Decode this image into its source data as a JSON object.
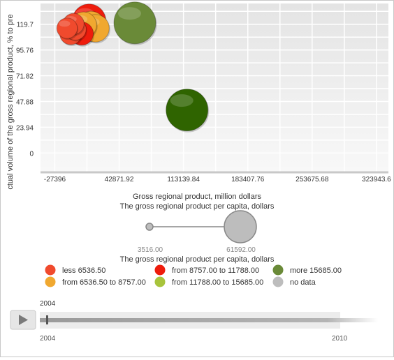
{
  "chart_data": {
    "type": "scatter",
    "subtype": "bubble",
    "ylabel": "Actual volume of the gross regional product, % to previous year",
    "ylabel_visible": "ctual volume of the gross regional product, % to pre",
    "xlabel": "Gross regional product, million dollars",
    "x_ticks": [
      "-27396",
      "42871.92",
      "113139.84",
      "183407.76",
      "253675.68",
      "323943.6"
    ],
    "x_tick_values": [
      -27396,
      42871.92,
      113139.84,
      183407.76,
      253675.68,
      323943.6
    ],
    "y_ticks": [
      "0",
      "23.94",
      "47.88",
      "71.82",
      "95.76",
      "119.7"
    ],
    "y_tick_values": [
      0,
      23.94,
      47.88,
      71.82,
      95.76,
      119.7
    ],
    "xlim": [
      -43000,
      337000
    ],
    "ylim": [
      -18,
      139
    ],
    "grid": true,
    "points": [
      {
        "x": 60000,
        "y": 121,
        "size": 15000,
        "color_group": "more 15685.00"
      },
      {
        "x": 117000,
        "y": 40,
        "size": 15000,
        "color_group": "more 15685.00"
      },
      {
        "x": 10000,
        "y": 123,
        "size": 9500,
        "color_group": "from 8757.00 to 11788.00"
      },
      {
        "x": 12000,
        "y": 118,
        "size": 7500,
        "color_group": "from 6536.50 to 8757.00"
      },
      {
        "x": 17000,
        "y": 116,
        "size": 6500,
        "color_group": "from 6536.50 to 8757.00"
      },
      {
        "x": 4000,
        "y": 119,
        "size": 5800,
        "color_group": "from 6536.50 to 8757.00"
      },
      {
        "x": -5000,
        "y": 115,
        "size": 4000,
        "color_group": "less 6536.50"
      },
      {
        "x": -14000,
        "y": 116,
        "size": 3600,
        "color_group": "less 6536.50"
      },
      {
        "x": -7000,
        "y": 120,
        "size": 3800,
        "color_group": "less 6536.50"
      },
      {
        "x": -10000,
        "y": 111,
        "size": 4200,
        "color_group": "less 6536.50"
      },
      {
        "x": 2000,
        "y": 111,
        "size": 4600,
        "color_group": "from 8757.00 to 11788.00"
      }
    ],
    "size_legend": {
      "title": "The gross regional product per capita, dollars",
      "min_label": "3516.00",
      "max_label": "61592.00"
    },
    "color_legend": {
      "title": "The gross regional product per capita, dollars",
      "items": [
        {
          "label": "less 6536.50",
          "color": "#f04a2d"
        },
        {
          "label": "from 6536.50 to 8757.00",
          "color": "#f0a830"
        },
        {
          "label": "from 8757.00 to 11788.00",
          "color": "#ee1c0c"
        },
        {
          "label": "from 11788.00 to 15685.00",
          "color": "#a8c43c"
        },
        {
          "label": "more 15685.00",
          "color": "#6a8a38"
        },
        {
          "label": "no data",
          "color": "#bdbdbd"
        }
      ]
    }
  },
  "timeline": {
    "current_label": "2004",
    "start_label": "2004",
    "end_label": "2010",
    "progress": 0.0
  },
  "colors": {
    "more_dark": "#2f6400"
  }
}
